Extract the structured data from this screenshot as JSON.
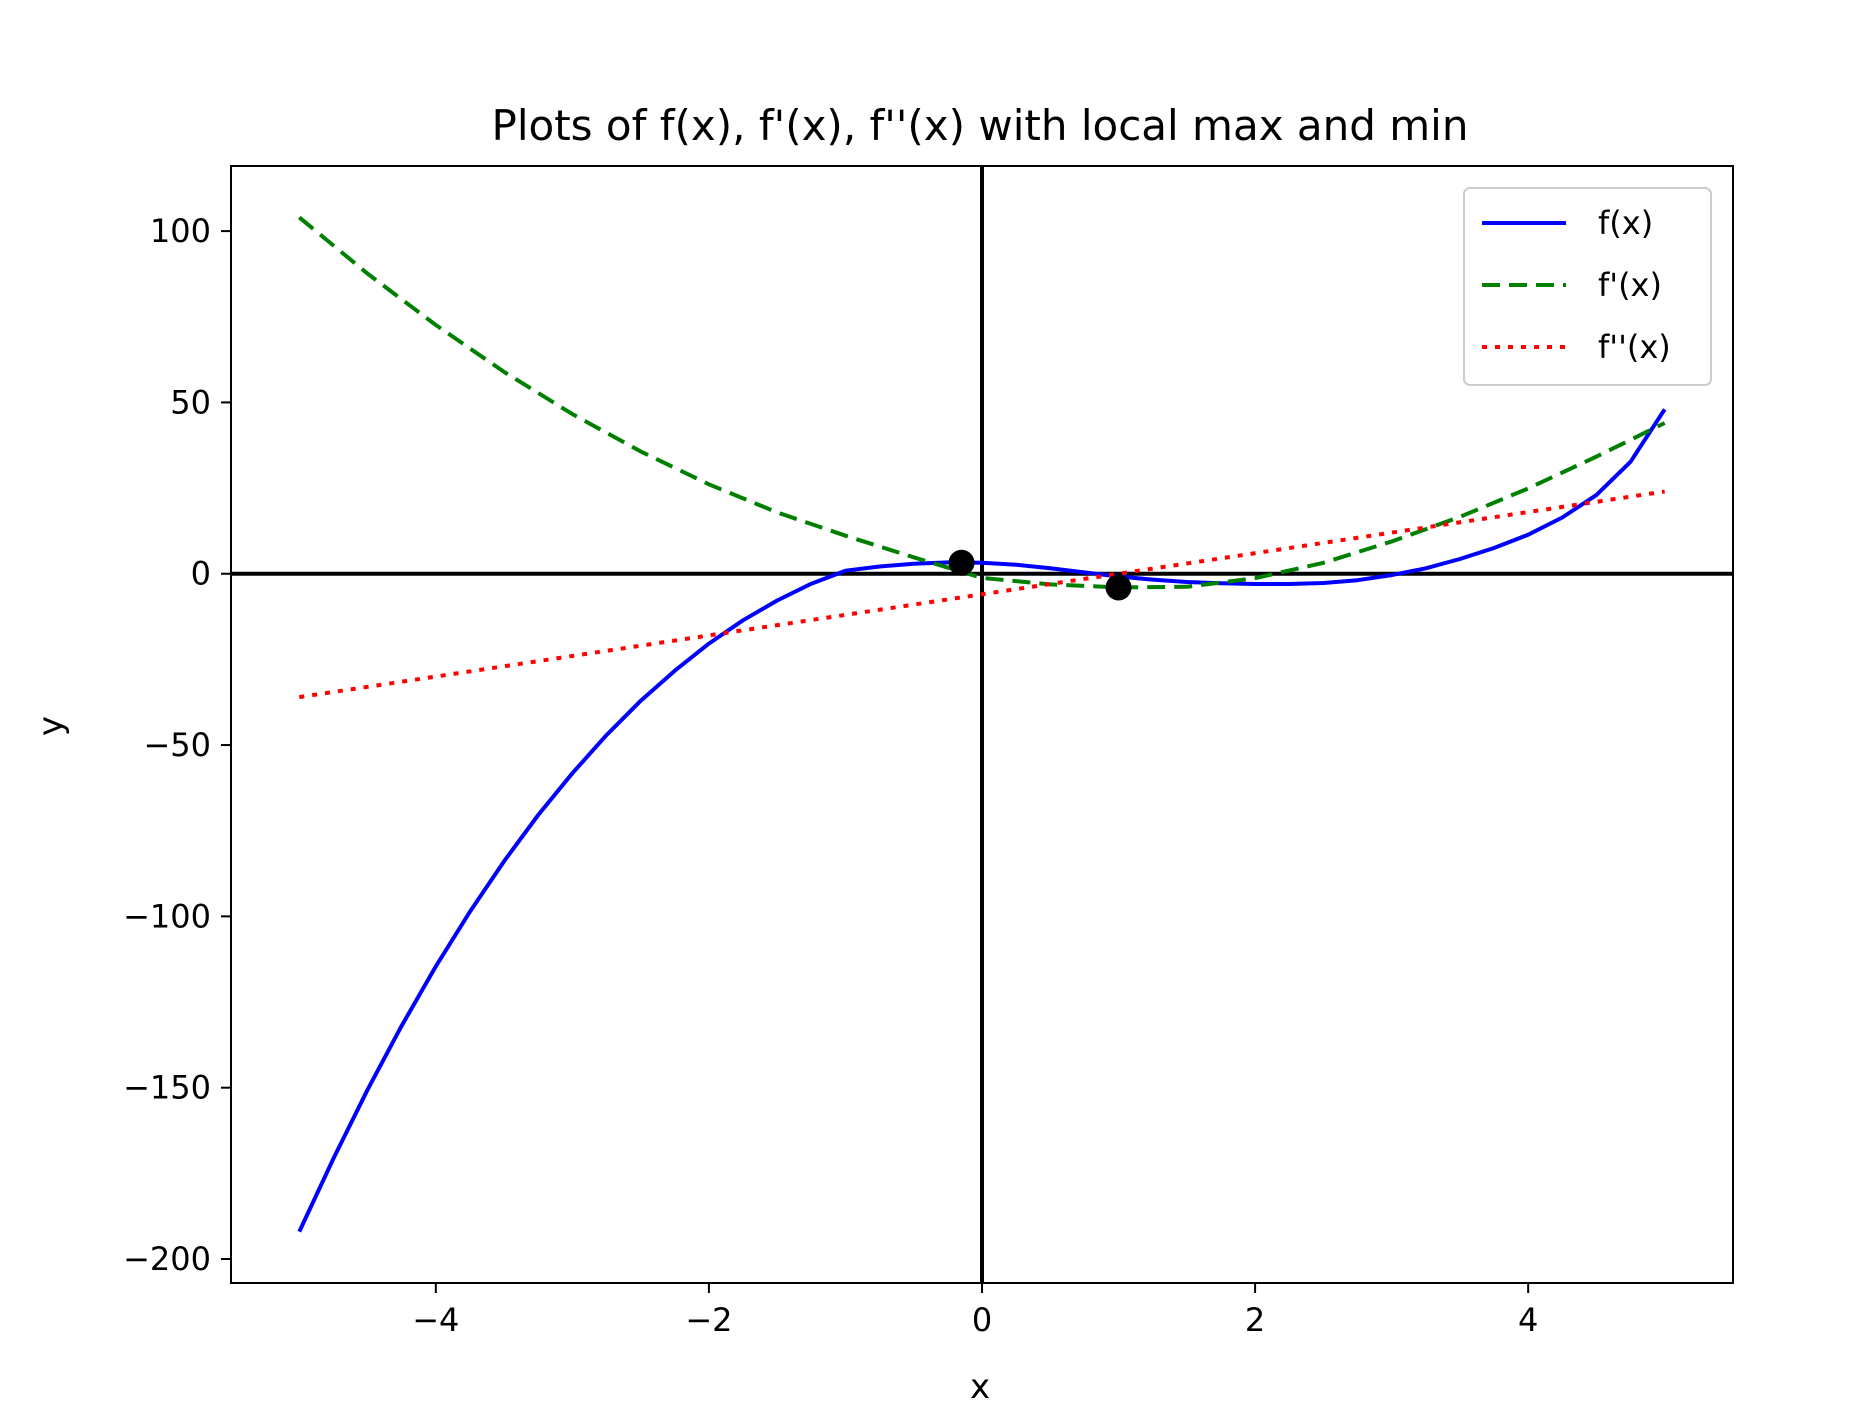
{
  "chart_data": {
    "type": "line",
    "title": "Plots of f(x), f'(x), f''(x) with local max and min",
    "xlabel": "x",
    "ylabel": "y",
    "xlim": [
      -5.5,
      5.5
    ],
    "ylim": [
      -207,
      119
    ],
    "xticks": [
      {
        "value": -4,
        "label": "−4"
      },
      {
        "value": -2,
        "label": "−2"
      },
      {
        "value": 0,
        "label": "0"
      },
      {
        "value": 2,
        "label": "2"
      },
      {
        "value": 4,
        "label": "4"
      }
    ],
    "yticks": [
      {
        "value": 100,
        "label": "100"
      },
      {
        "value": 50,
        "label": "50"
      },
      {
        "value": 0,
        "label": "0"
      },
      {
        "value": -50,
        "label": "−50"
      },
      {
        "value": -100,
        "label": "−100"
      },
      {
        "value": -150,
        "label": "−150"
      },
      {
        "value": -200,
        "label": "−200"
      }
    ],
    "grid": false,
    "legend_position": "top-right",
    "reference_lines": [
      {
        "orientation": "horizontal",
        "value": 0,
        "color": "#000000"
      },
      {
        "orientation": "vertical",
        "value": 0,
        "color": "#000000"
      }
    ],
    "series": [
      {
        "name": "f(x)",
        "color": "#0000ff",
        "style": "solid",
        "points": [
          [
            -5,
            -192
          ],
          [
            -4.75,
            -170.7
          ],
          [
            -4.5,
            -150.6
          ],
          [
            -4.25,
            -131.9
          ],
          [
            -4,
            -114.6
          ],
          [
            -3.75,
            -98.6
          ],
          [
            -3.5,
            -83.9
          ],
          [
            -3.25,
            -70.4
          ],
          [
            -3,
            -58.2
          ],
          [
            -2.75,
            -47.1
          ],
          [
            -2.5,
            -37.1
          ],
          [
            -2.25,
            -28.3
          ],
          [
            -2,
            -20.4
          ],
          [
            -1.75,
            -13.6
          ],
          [
            -1.5,
            -7.8
          ],
          [
            -1.25,
            -2.9
          ],
          [
            -1,
            0.9
          ],
          [
            -0.75,
            2.1
          ],
          [
            -0.5,
            2.9
          ],
          [
            -0.25,
            3.3
          ],
          [
            0,
            3.2
          ],
          [
            0.25,
            2.6
          ],
          [
            0.5,
            1.6
          ],
          [
            0.75,
            0.4
          ],
          [
            1,
            -0.8
          ],
          [
            1.25,
            -1.7
          ],
          [
            1.5,
            -2.4
          ],
          [
            1.75,
            -2.8
          ],
          [
            2,
            -3.0
          ],
          [
            2.25,
            -3.0
          ],
          [
            2.5,
            -2.7
          ],
          [
            2.75,
            -1.9
          ],
          [
            3,
            -0.4
          ],
          [
            3.25,
            1.6
          ],
          [
            3.5,
            4.3
          ],
          [
            3.75,
            7.5
          ],
          [
            4,
            11.4
          ],
          [
            4.25,
            16.4
          ],
          [
            4.5,
            23.0
          ],
          [
            4.75,
            32.7
          ],
          [
            5,
            48
          ]
        ]
      },
      {
        "name": "f'(x)",
        "color": "#008000",
        "style": "dashed",
        "points": [
          [
            -5,
            104
          ],
          [
            -4.5,
            87.6
          ],
          [
            -4,
            72.6
          ],
          [
            -3.5,
            58.9
          ],
          [
            -3,
            46.6
          ],
          [
            -2.5,
            35.7
          ],
          [
            -2,
            26.1
          ],
          [
            -1.5,
            17.9
          ],
          [
            -1,
            11.1
          ],
          [
            -0.5,
            4.8
          ],
          [
            0,
            -1.2
          ],
          [
            0.5,
            -3.1
          ],
          [
            1,
            -4.0
          ],
          [
            1.5,
            -3.8
          ],
          [
            2,
            -1.3
          ],
          [
            2.5,
            3.2
          ],
          [
            3,
            9.4
          ],
          [
            3.5,
            16.6
          ],
          [
            4,
            24.9
          ],
          [
            4.5,
            34.2
          ],
          [
            5,
            44
          ]
        ]
      },
      {
        "name": "f''(x)",
        "color": "#ff0000",
        "style": "dotted",
        "points": [
          [
            -5,
            -36
          ],
          [
            5,
            24
          ]
        ]
      }
    ],
    "points": [
      {
        "x": -0.15,
        "y": 3.2,
        "color": "#000000"
      },
      {
        "x": 1.0,
        "y": -4.0,
        "color": "#000000"
      }
    ]
  }
}
